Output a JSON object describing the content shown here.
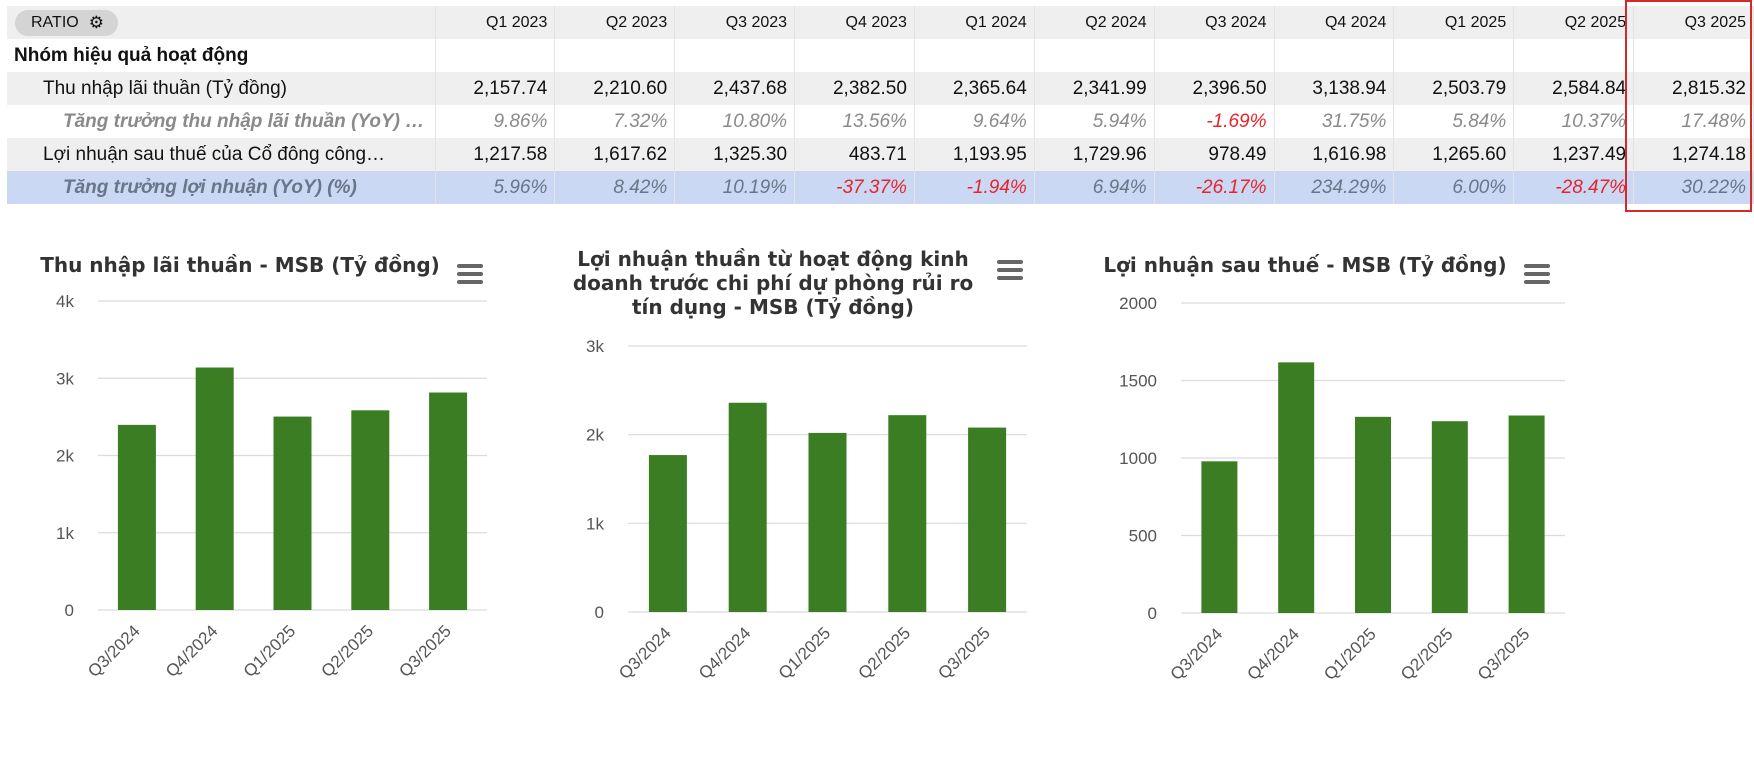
{
  "table": {
    "ratio_label": "RATIO",
    "settings_icon": "gear-icon",
    "columns": [
      "Q1 2023",
      "Q2 2023",
      "Q3 2023",
      "Q4 2023",
      "Q1 2024",
      "Q2 2024",
      "Q3 2024",
      "Q4 2024",
      "Q1 2025",
      "Q2 2025",
      "Q3 2025"
    ],
    "group_label": "Nhóm hiệu quả hoạt động",
    "rows": [
      {
        "label": "Thu nhập lãi thuần (Tỷ đồng)",
        "style": "plain",
        "values": [
          "2,157.74",
          "2,210.60",
          "2,437.68",
          "2,382.50",
          "2,365.64",
          "2,341.99",
          "2,396.50",
          "3,138.94",
          "2,503.79",
          "2,584.84",
          "2,815.32"
        ]
      },
      {
        "label": "Tăng trưởng thu nhập lãi thuần (YoY) (%)",
        "style": "growth",
        "values": [
          "9.86%",
          "7.32%",
          "10.80%",
          "13.56%",
          "9.64%",
          "5.94%",
          "-1.69%",
          "31.75%",
          "5.84%",
          "10.37%",
          "17.48%"
        ]
      },
      {
        "label": "Lợi nhuận sau thuế của Cổ đông công…",
        "style": "plain",
        "values": [
          "1,217.58",
          "1,617.62",
          "1,325.30",
          "483.71",
          "1,193.95",
          "1,729.96",
          "978.49",
          "1,616.98",
          "1,265.60",
          "1,237.49",
          "1,274.18"
        ]
      },
      {
        "label": "Tăng trưởng lợi nhuận (YoY) (%)",
        "style": "growth-highlight",
        "values": [
          "5.96%",
          "8.42%",
          "10.19%",
          "-37.37%",
          "-1.94%",
          "6.94%",
          "-26.17%",
          "234.29%",
          "6.00%",
          "-28.47%",
          "30.22%"
        ]
      }
    ],
    "highlight_color": "#d22a2a",
    "negative_color": "#e8232a",
    "highlight_row_color": "#cad8f4"
  },
  "chart_data": [
    {
      "type": "bar",
      "title": "Thu nhập lãi thuần - MSB (Tỷ đồng)",
      "categories": [
        "Q3/2024",
        "Q4/2024",
        "Q1/2025",
        "Q2/2025",
        "Q3/2025"
      ],
      "values": [
        2396.5,
        3138.94,
        2503.79,
        2584.84,
        2815.32
      ],
      "ylim": [
        0,
        4000
      ],
      "yticks": [
        0,
        1000,
        2000,
        3000,
        4000
      ],
      "ytick_labels": [
        "0",
        "1k",
        "2k",
        "3k",
        "4k"
      ],
      "color": "#3a7d23",
      "grid": true
    },
    {
      "type": "bar",
      "title": "Lợi nhuận thuần từ hoạt động kinh doanh trước chi phí dự phòng rủi ro tín dụng - MSB (Tỷ đồng)",
      "title_lines": [
        "Lợi nhuận thuần từ hoạt động kinh",
        "doanh trước chi phí dự phòng rủi ro",
        "tín dụng - MSB (Tỷ đồng)"
      ],
      "categories": [
        "Q3/2024",
        "Q4/2024",
        "Q1/2025",
        "Q2/2025",
        "Q3/2025"
      ],
      "values": [
        1770,
        2360,
        2020,
        2220,
        2080
      ],
      "ylim": [
        0,
        3000
      ],
      "yticks": [
        0,
        1000,
        2000,
        3000
      ],
      "ytick_labels": [
        "0",
        "1k",
        "2k",
        "3k"
      ],
      "color": "#3a7d23",
      "grid": true
    },
    {
      "type": "bar",
      "title": "Lợi nhuận sau thuế - MSB (Tỷ đồng)",
      "categories": [
        "Q3/2024",
        "Q4/2024",
        "Q1/2025",
        "Q2/2025",
        "Q3/2025"
      ],
      "values": [
        978.49,
        1616.98,
        1265.6,
        1237.49,
        1274.18
      ],
      "ylim": [
        0,
        2000
      ],
      "yticks": [
        0,
        500,
        1000,
        1500,
        2000
      ],
      "ytick_labels": [
        "0",
        "500",
        "1000",
        "1500",
        "2000"
      ],
      "color": "#3a7d23",
      "grid": true
    }
  ],
  "chart_menu_icon": "hamburger-menu-icon"
}
